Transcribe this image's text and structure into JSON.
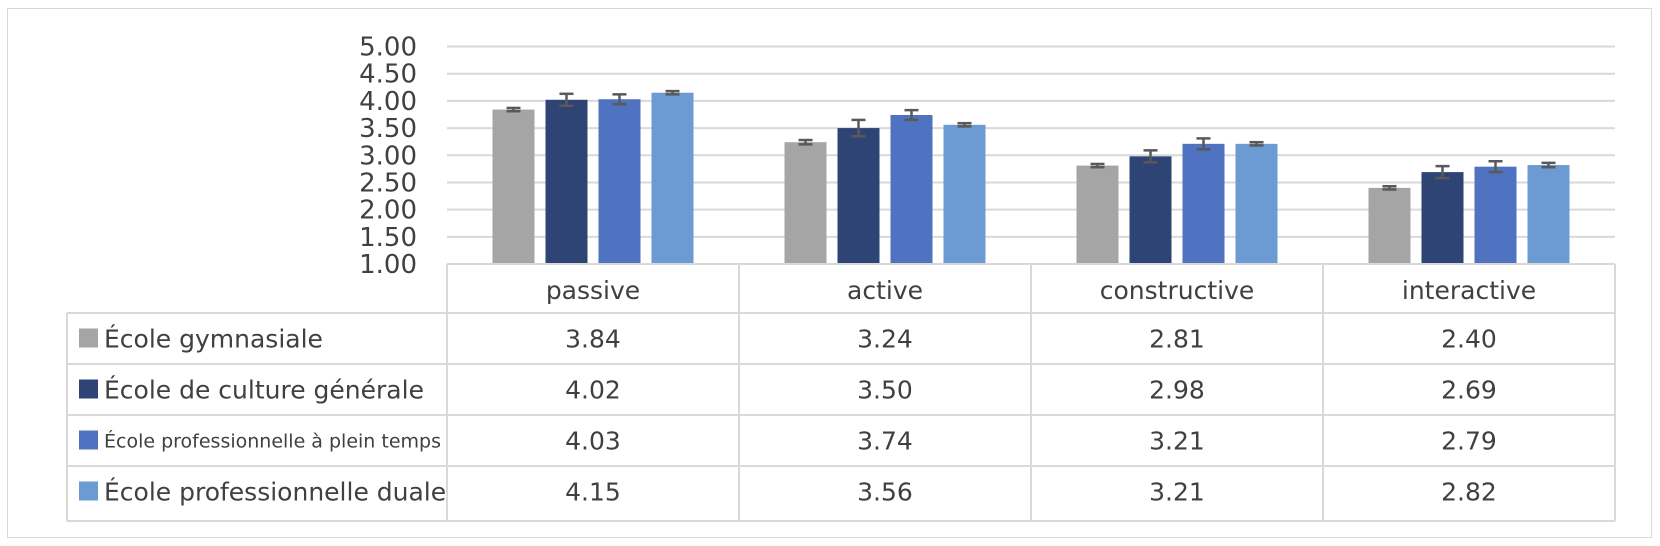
{
  "chart_data": {
    "type": "bar",
    "categories": [
      "passive",
      "active",
      "constructive",
      "interactive"
    ],
    "ylim": [
      1.0,
      5.0
    ],
    "yticks": [
      "1.00",
      "1.50",
      "2.00",
      "2.50",
      "3.00",
      "3.50",
      "4.00",
      "4.50",
      "5.00"
    ],
    "grid": true,
    "legend": "data-table",
    "series": [
      {
        "name": "École gymnasiale",
        "color": "#a5a5a5",
        "values": [
          3.84,
          3.24,
          2.81,
          2.4
        ],
        "labels": [
          "3.84",
          "3.24",
          "2.81",
          "2.40"
        ],
        "error": [
          0.03,
          0.04,
          0.03,
          0.03
        ]
      },
      {
        "name": "École de culture générale",
        "color": "#2e4474",
        "values": [
          4.02,
          3.5,
          2.98,
          2.69
        ],
        "labels": [
          "4.02",
          "3.50",
          "2.98",
          "2.69"
        ],
        "error": [
          0.11,
          0.15,
          0.11,
          0.11
        ]
      },
      {
        "name": "École professionnelle à plein temps",
        "color": "#4f72c1",
        "values": [
          4.03,
          3.74,
          3.21,
          2.79
        ],
        "labels": [
          "4.03",
          "3.74",
          "3.21",
          "2.79"
        ],
        "error": [
          0.09,
          0.09,
          0.1,
          0.1
        ]
      },
      {
        "name": "École professionnelle duale",
        "color": "#6c9bd3",
        "values": [
          4.15,
          3.56,
          3.21,
          2.82
        ],
        "labels": [
          "4.15",
          "3.56",
          "3.21",
          "2.82"
        ],
        "error": [
          0.03,
          0.03,
          0.03,
          0.04
        ]
      }
    ]
  }
}
